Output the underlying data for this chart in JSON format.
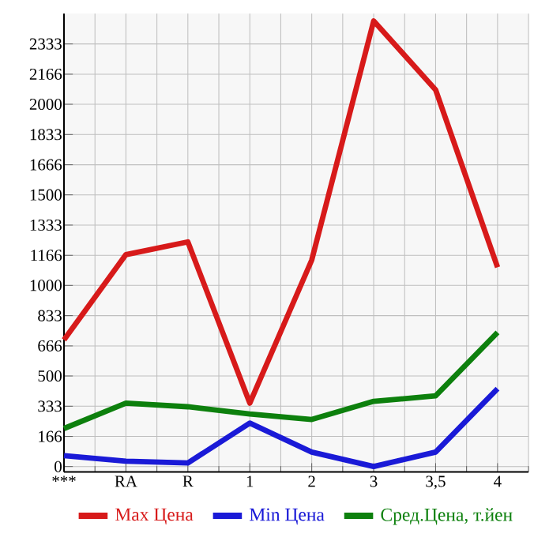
{
  "chart_data": {
    "type": "line",
    "categories": [
      "***",
      "RA",
      "R",
      "1",
      "2",
      "3",
      "3,5",
      "4"
    ],
    "series": [
      {
        "name": "Max Цена",
        "color": "#d71a1a",
        "values": [
          700,
          1170,
          1240,
          350,
          1140,
          2460,
          2080,
          1100
        ]
      },
      {
        "name": "Min Цена",
        "color": "#1a1ad7",
        "values": [
          60,
          30,
          20,
          240,
          80,
          0,
          80,
          430
        ]
      },
      {
        "name": "Сред.Цена, т.йен",
        "color": "#0d800d",
        "values": [
          210,
          350,
          330,
          290,
          260,
          360,
          390,
          740
        ]
      }
    ],
    "ylim": [
      -30,
      2500
    ],
    "yticks": [
      0,
      166,
      333,
      500,
      666,
      833,
      1000,
      1166,
      1333,
      1500,
      1666,
      1833,
      2000,
      2166,
      2333
    ],
    "grid": true,
    "legend": "bottom",
    "marker": "none",
    "line_style": "solid"
  }
}
